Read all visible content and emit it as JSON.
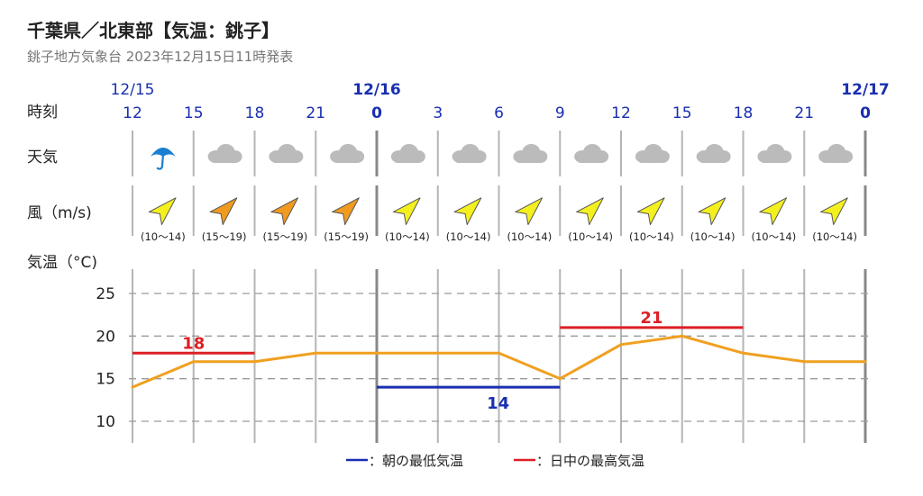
{
  "header": {
    "title": "千葉県／北東部【気温：銚子】",
    "subtitle": "銚子地方気象台 2023年12月15日11時発表"
  },
  "row_labels": {
    "time": "時刻",
    "weather": "天気",
    "wind": "風（m/s)",
    "temp": "気温（°C)"
  },
  "colors": {
    "date_blue": "#1a2fb0",
    "temp_line": "#f0a020",
    "min_line": "#1a2fb0",
    "max_line": "#dd1f26",
    "grid": "#9a9a9a",
    "arrow_yellow": "#f4f020",
    "arrow_orange": "#f09a20",
    "umbrella": "#1a7fd0",
    "cloud": "#bbbbbb"
  },
  "dates": [
    {
      "label": "12/15",
      "bold": false
    },
    {
      "label": "12/16",
      "bold": true
    },
    {
      "label": "12/17",
      "bold": true
    }
  ],
  "hours": [
    "12",
    "15",
    "18",
    "21",
    "0",
    "3",
    "6",
    "9",
    "12",
    "15",
    "18",
    "21",
    "0"
  ],
  "weather": [
    "umbrella-icon",
    "cloud-icon",
    "cloud-icon",
    "cloud-icon",
    "cloud-icon",
    "cloud-icon",
    "cloud-icon",
    "cloud-icon",
    "cloud-icon",
    "cloud-icon",
    "cloud-icon",
    "cloud-icon"
  ],
  "wind": [
    {
      "speed": "(10～14)",
      "level": "yellow"
    },
    {
      "speed": "(15～19)",
      "level": "orange"
    },
    {
      "speed": "(15～19)",
      "level": "orange"
    },
    {
      "speed": "(15～19)",
      "level": "orange"
    },
    {
      "speed": "(10～14)",
      "level": "yellow"
    },
    {
      "speed": "(10～14)",
      "level": "yellow"
    },
    {
      "speed": "(10～14)",
      "level": "yellow"
    },
    {
      "speed": "(10～14)",
      "level": "yellow"
    },
    {
      "speed": "(10～14)",
      "level": "yellow"
    },
    {
      "speed": "(10～14)",
      "level": "yellow"
    },
    {
      "speed": "(10～14)",
      "level": "yellow"
    },
    {
      "speed": "(10～14)",
      "level": "yellow"
    }
  ],
  "legend": {
    "min_label": "：朝の最低気温",
    "max_label": "：日中の最高気温"
  },
  "chart_data": {
    "type": "line",
    "x": [
      "12/15 12",
      "12/15 15",
      "12/15 18",
      "12/15 21",
      "12/16 0",
      "12/16 3",
      "12/16 6",
      "12/16 9",
      "12/16 12",
      "12/16 15",
      "12/16 18",
      "12/16 21",
      "12/17 0"
    ],
    "series": [
      {
        "values": [
          14,
          17,
          17,
          18,
          18,
          18,
          18,
          15,
          19,
          20,
          18,
          17,
          17
        ]
      }
    ],
    "min_temp": {
      "value": 14,
      "label": "14",
      "from": "12/16 0",
      "to": "12/16 9"
    },
    "max_temps": [
      {
        "value": 18,
        "label": "18",
        "from": "12/15 12",
        "to": "12/15 18"
      },
      {
        "value": 21,
        "label": "21",
        "from": "12/16 9",
        "to": "12/16 18"
      }
    ],
    "ylabel": "気温（°C)",
    "yticks": [
      10,
      15,
      20,
      25
    ],
    "ylim": [
      10,
      25
    ],
    "grid": true
  }
}
